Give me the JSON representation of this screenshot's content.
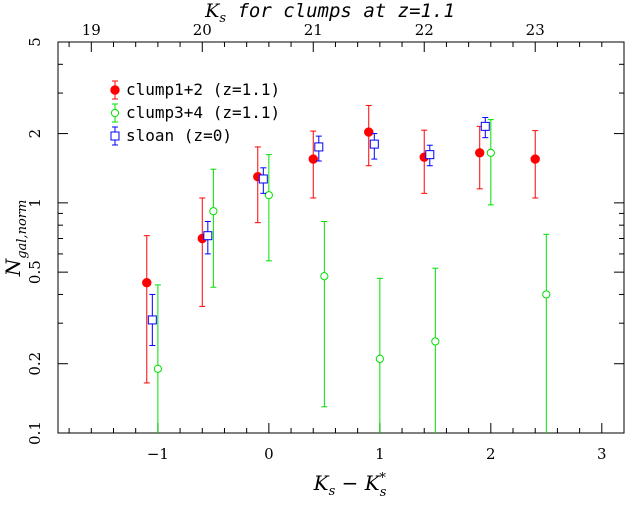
{
  "chart_data": {
    "type": "scatter",
    "xlabel": "K_s − K_s*",
    "ylabel": "N_gal,norm",
    "top_axis_label": "K_s for clumps at z=1.1",
    "xlim": [
      -1.9,
      3.2
    ],
    "ylim": [
      0.1,
      5
    ],
    "y_scale": "log",
    "grid": false,
    "legend_placement": "top-left",
    "x_ticks": [
      -1,
      0,
      1,
      2,
      3
    ],
    "x_tick_labels": [
      "−1",
      "0",
      "1",
      "2",
      "3"
    ],
    "y_ticks": [
      0.1,
      0.2,
      0.5,
      1,
      2,
      5
    ],
    "y_tick_labels": [
      "0.1",
      "0.2",
      "0.5",
      "1",
      "2",
      "5"
    ],
    "top_ticks": [
      -1.6,
      -0.6,
      0.4,
      1.4,
      2.4
    ],
    "top_tick_labels": [
      "19",
      "20",
      "21",
      "22",
      "23"
    ],
    "series": [
      {
        "name": "clump1+2 (z=1.1)",
        "marker": "filled-circle",
        "color": "#ff0000",
        "points": [
          {
            "x": -1.1,
            "y": 0.45,
            "ylo": 0.165,
            "yhi": 0.72
          },
          {
            "x": -0.6,
            "y": 0.7,
            "ylo": 0.355,
            "yhi": 1.05
          },
          {
            "x": -0.1,
            "y": 1.3,
            "ylo": 0.82,
            "yhi": 1.75
          },
          {
            "x": 0.4,
            "y": 1.55,
            "ylo": 1.05,
            "yhi": 2.05
          },
          {
            "x": 0.9,
            "y": 2.03,
            "ylo": 1.45,
            "yhi": 2.65
          },
          {
            "x": 1.4,
            "y": 1.58,
            "ylo": 1.1,
            "yhi": 2.07
          },
          {
            "x": 1.9,
            "y": 1.65,
            "ylo": 1.15,
            "yhi": 2.15
          },
          {
            "x": 2.4,
            "y": 1.55,
            "ylo": 1.05,
            "yhi": 2.06
          }
        ]
      },
      {
        "name": "clump3+4 (z=1.1)",
        "marker": "open-circle",
        "color": "#00e000",
        "points": [
          {
            "x": -1.0,
            "y": 0.19,
            "ylo": 0.1,
            "yhi": 0.44
          },
          {
            "x": -0.5,
            "y": 0.92,
            "ylo": 0.43,
            "yhi": 1.4
          },
          {
            "x": 0.0,
            "y": 1.08,
            "ylo": 0.56,
            "yhi": 1.62
          },
          {
            "x": 0.5,
            "y": 0.48,
            "ylo": 0.13,
            "yhi": 0.83
          },
          {
            "x": 1.0,
            "y": 0.21,
            "ylo": 0.1,
            "yhi": 0.47
          },
          {
            "x": 1.5,
            "y": 0.25,
            "ylo": 0.1,
            "yhi": 0.52
          },
          {
            "x": 2.0,
            "y": 1.65,
            "ylo": 0.98,
            "yhi": 2.3
          },
          {
            "x": 2.5,
            "y": 0.4,
            "ylo": 0.1,
            "yhi": 0.73
          }
        ]
      },
      {
        "name": "sloan (z=0)",
        "marker": "open-square",
        "color": "#0000ff",
        "points": [
          {
            "x": -1.05,
            "y": 0.31,
            "ylo": 0.24,
            "yhi": 0.4
          },
          {
            "x": -0.55,
            "y": 0.72,
            "ylo": 0.6,
            "yhi": 0.83
          },
          {
            "x": -0.05,
            "y": 1.27,
            "ylo": 1.1,
            "yhi": 1.42
          },
          {
            "x": 0.45,
            "y": 1.75,
            "ylo": 1.52,
            "yhi": 1.95
          },
          {
            "x": 0.95,
            "y": 1.8,
            "ylo": 1.55,
            "yhi": 2.0
          },
          {
            "x": 1.45,
            "y": 1.62,
            "ylo": 1.45,
            "yhi": 1.78
          },
          {
            "x": 1.95,
            "y": 2.15,
            "ylo": 1.92,
            "yhi": 2.35
          }
        ]
      }
    ]
  }
}
